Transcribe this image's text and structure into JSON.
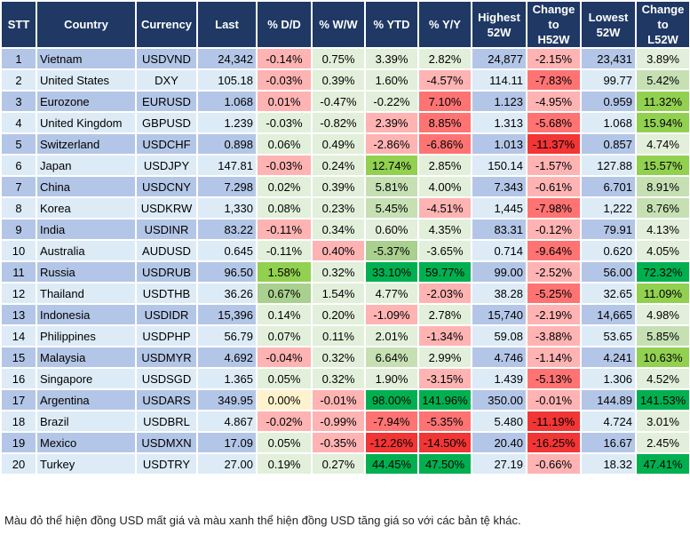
{
  "headers": [
    "STT",
    "Country",
    "Currency",
    "Last",
    "% D/D",
    "% W/W",
    "% YTD",
    "% Y/Y",
    "Highest\n52W",
    "Change\nto\nH52W",
    "Lowest\n52W",
    "Change\nto\nL52W"
  ],
  "color_levels": {
    "r1": "#ffb3b3",
    "r2": "#ff7373",
    "r3": "#f23535",
    "g0": "#e2efda",
    "g1": "#c6e0b4",
    "g2": "#a9d08e",
    "g3": "#92d050",
    "g4": "#00b050",
    "y": "#fff2cc",
    "header": "#1f3864",
    "row_odd": "#b4c6e7",
    "row_even": "#ddebf7"
  },
  "rows": [
    {
      "stt": "1",
      "country": "Vietnam",
      "currency": "USDVND",
      "last": "24,342",
      "dd": "-0.14%",
      "ww": "0.75%",
      "ytd": "3.39%",
      "yy": "2.82%",
      "high": "24,877",
      "ch_high": "-2.15%",
      "low": "23,431",
      "ch_low": "3.89%",
      "levels": [
        "r1",
        "g0",
        "g0",
        "g0",
        "r1",
        "g0"
      ]
    },
    {
      "stt": "2",
      "country": "United States",
      "currency": "DXY",
      "last": "105.18",
      "dd": "-0.03%",
      "ww": "0.39%",
      "ytd": "1.60%",
      "yy": "-4.57%",
      "high": "114.11",
      "ch_high": "-7.83%",
      "low": "99.77",
      "ch_low": "5.42%",
      "levels": [
        "r1",
        "g0",
        "g0",
        "r1",
        "r2",
        "g1"
      ]
    },
    {
      "stt": "3",
      "country": "Eurozone",
      "currency": "EURUSD",
      "last": "1.068",
      "dd": "0.01%",
      "ww": "-0.47%",
      "ytd": "-0.22%",
      "yy": "7.10%",
      "high": "1.123",
      "ch_high": "-4.95%",
      "low": "0.959",
      "ch_low": "11.32%",
      "levels": [
        "r1",
        "g0",
        "g0",
        "r2",
        "r1",
        "g3"
      ]
    },
    {
      "stt": "4",
      "country": "United Kingdom",
      "currency": "GBPUSD",
      "last": "1.239",
      "dd": "-0.03%",
      "ww": "-0.82%",
      "ytd": "2.39%",
      "yy": "8.85%",
      "high": "1.313",
      "ch_high": "-5.68%",
      "low": "1.068",
      "ch_low": "15.94%",
      "levels": [
        "g0",
        "g0",
        "r1",
        "r2",
        "r2",
        "g3"
      ]
    },
    {
      "stt": "5",
      "country": "Switzerland",
      "currency": "USDCHF",
      "last": "0.898",
      "dd": "0.06%",
      "ww": "0.49%",
      "ytd": "-2.86%",
      "yy": "-6.86%",
      "high": "1.013",
      "ch_high": "-11.37%",
      "low": "0.857",
      "ch_low": "4.74%",
      "levels": [
        "g0",
        "g0",
        "r1",
        "r2",
        "r3",
        "g0"
      ]
    },
    {
      "stt": "6",
      "country": "Japan",
      "currency": "USDJPY",
      "last": "147.81",
      "dd": "-0.03%",
      "ww": "0.24%",
      "ytd": "12.74%",
      "yy": "2.85%",
      "high": "150.14",
      "ch_high": "-1.57%",
      "low": "127.88",
      "ch_low": "15.57%",
      "levels": [
        "r1",
        "g0",
        "g3",
        "g0",
        "r1",
        "g3"
      ]
    },
    {
      "stt": "7",
      "country": "China",
      "currency": "USDCNY",
      "last": "7.298",
      "dd": "0.02%",
      "ww": "0.39%",
      "ytd": "5.81%",
      "yy": "4.00%",
      "high": "7.343",
      "ch_high": "-0.61%",
      "low": "6.701",
      "ch_low": "8.91%",
      "levels": [
        "g0",
        "g0",
        "g1",
        "g0",
        "r1",
        "g1"
      ]
    },
    {
      "stt": "8",
      "country": "Korea",
      "currency": "USDKRW",
      "last": "1,330",
      "dd": "0.08%",
      "ww": "0.23%",
      "ytd": "5.45%",
      "yy": "-4.51%",
      "high": "1,445",
      "ch_high": "-7.98%",
      "low": "1,222",
      "ch_low": "8.76%",
      "levels": [
        "g0",
        "g0",
        "g1",
        "r1",
        "r2",
        "g1"
      ]
    },
    {
      "stt": "9",
      "country": "India",
      "currency": "USDINR",
      "last": "83.22",
      "dd": "-0.11%",
      "ww": "0.34%",
      "ytd": "0.60%",
      "yy": "4.35%",
      "high": "83.31",
      "ch_high": "-0.12%",
      "low": "79.91",
      "ch_low": "4.13%",
      "levels": [
        "r1",
        "g0",
        "g0",
        "g0",
        "r1",
        "g0"
      ]
    },
    {
      "stt": "10",
      "country": "Australia",
      "currency": "AUDUSD",
      "last": "0.645",
      "dd": "-0.11%",
      "ww": "0.40%",
      "ytd": "-5.37%",
      "yy": "-3.65%",
      "high": "0.714",
      "ch_high": "-9.64%",
      "low": "0.620",
      "ch_low": "4.05%",
      "levels": [
        "g0",
        "r1",
        "g2",
        "g0",
        "r2",
        "g0"
      ]
    },
    {
      "stt": "11",
      "country": "Russia",
      "currency": "USDRUB",
      "last": "96.50",
      "dd": "1.58%",
      "ww": "0.32%",
      "ytd": "33.10%",
      "yy": "59.77%",
      "high": "99.00",
      "ch_high": "-2.52%",
      "low": "56.00",
      "ch_low": "72.32%",
      "levels": [
        "g3",
        "g0",
        "g4",
        "g4",
        "r1",
        "g4"
      ]
    },
    {
      "stt": "12",
      "country": "Thailand",
      "currency": "USDTHB",
      "last": "36.26",
      "dd": "0.67%",
      "ww": "1.54%",
      "ytd": "4.77%",
      "yy": "-2.03%",
      "high": "38.28",
      "ch_high": "-5.25%",
      "low": "32.65",
      "ch_low": "11.09%",
      "levels": [
        "g2",
        "g0",
        "g0",
        "r1",
        "r2",
        "g3"
      ]
    },
    {
      "stt": "13",
      "country": "Indonesia",
      "currency": "USDIDR",
      "last": "15,396",
      "dd": "0.14%",
      "ww": "0.20%",
      "ytd": "-1.09%",
      "yy": "2.78%",
      "high": "15,740",
      "ch_high": "-2.19%",
      "low": "14,665",
      "ch_low": "4.98%",
      "levels": [
        "g0",
        "g0",
        "r1",
        "g0",
        "r1",
        "g0"
      ]
    },
    {
      "stt": "14",
      "country": "Philippines",
      "currency": "USDPHP",
      "last": "56.79",
      "dd": "0.07%",
      "ww": "0.11%",
      "ytd": "2.01%",
      "yy": "-1.34%",
      "high": "59.08",
      "ch_high": "-3.88%",
      "low": "53.65",
      "ch_low": "5.85%",
      "levels": [
        "g0",
        "g0",
        "g0",
        "r1",
        "r1",
        "g1"
      ]
    },
    {
      "stt": "15",
      "country": "Malaysia",
      "currency": "USDMYR",
      "last": "4.692",
      "dd": "-0.04%",
      "ww": "0.32%",
      "ytd": "6.64%",
      "yy": "2.99%",
      "high": "4.746",
      "ch_high": "-1.14%",
      "low": "4.241",
      "ch_low": "10.63%",
      "levels": [
        "r1",
        "g0",
        "g1",
        "g0",
        "r1",
        "g3"
      ]
    },
    {
      "stt": "16",
      "country": "Singapore",
      "currency": "USDSGD",
      "last": "1.365",
      "dd": "0.05%",
      "ww": "0.32%",
      "ytd": "1.90%",
      "yy": "-3.15%",
      "high": "1.439",
      "ch_high": "-5.13%",
      "low": "1.306",
      "ch_low": "4.52%",
      "levels": [
        "g0",
        "g0",
        "g0",
        "r1",
        "r2",
        "g0"
      ]
    },
    {
      "stt": "17",
      "country": "Argentina",
      "currency": "USDARS",
      "last": "349.95",
      "dd": "0.00%",
      "ww": "-0.01%",
      "ytd": "98.00%",
      "yy": "141.96%",
      "high": "350.00",
      "ch_high": "-0.01%",
      "low": "144.89",
      "ch_low": "141.53%",
      "levels": [
        "y",
        "r1",
        "g4",
        "g4",
        "r1",
        "g4"
      ]
    },
    {
      "stt": "18",
      "country": "Brazil",
      "currency": "USDBRL",
      "last": "4.867",
      "dd": "-0.02%",
      "ww": "-0.99%",
      "ytd": "-7.94%",
      "yy": "-5.35%",
      "high": "5.480",
      "ch_high": "-11.19%",
      "low": "4.724",
      "ch_low": "3.01%",
      "levels": [
        "r1",
        "r1",
        "r2",
        "r2",
        "r3",
        "g0"
      ]
    },
    {
      "stt": "19",
      "country": "Mexico",
      "currency": "USDMXN",
      "last": "17.09",
      "dd": "0.05%",
      "ww": "-0.35%",
      "ytd": "-12.26%",
      "yy": "-14.50%",
      "high": "20.40",
      "ch_high": "-16.25%",
      "low": "16.67",
      "ch_low": "2.45%",
      "levels": [
        "g0",
        "r1",
        "r3",
        "r3",
        "r3",
        "g0"
      ]
    },
    {
      "stt": "20",
      "country": "Turkey",
      "currency": "USDTRY",
      "last": "27.00",
      "dd": "0.19%",
      "ww": "0.27%",
      "ytd": "44.45%",
      "yy": "47.50%",
      "high": "27.19",
      "ch_high": "-0.66%",
      "low": "18.32",
      "ch_low": "47.41%",
      "levels": [
        "g0",
        "g0",
        "g4",
        "g4",
        "r1",
        "g4"
      ]
    }
  ],
  "footer": "Màu đỏ thể hiện đồng USD mất giá và màu xanh thể hiện đồng USD tăng giá so với các bản tệ khác."
}
